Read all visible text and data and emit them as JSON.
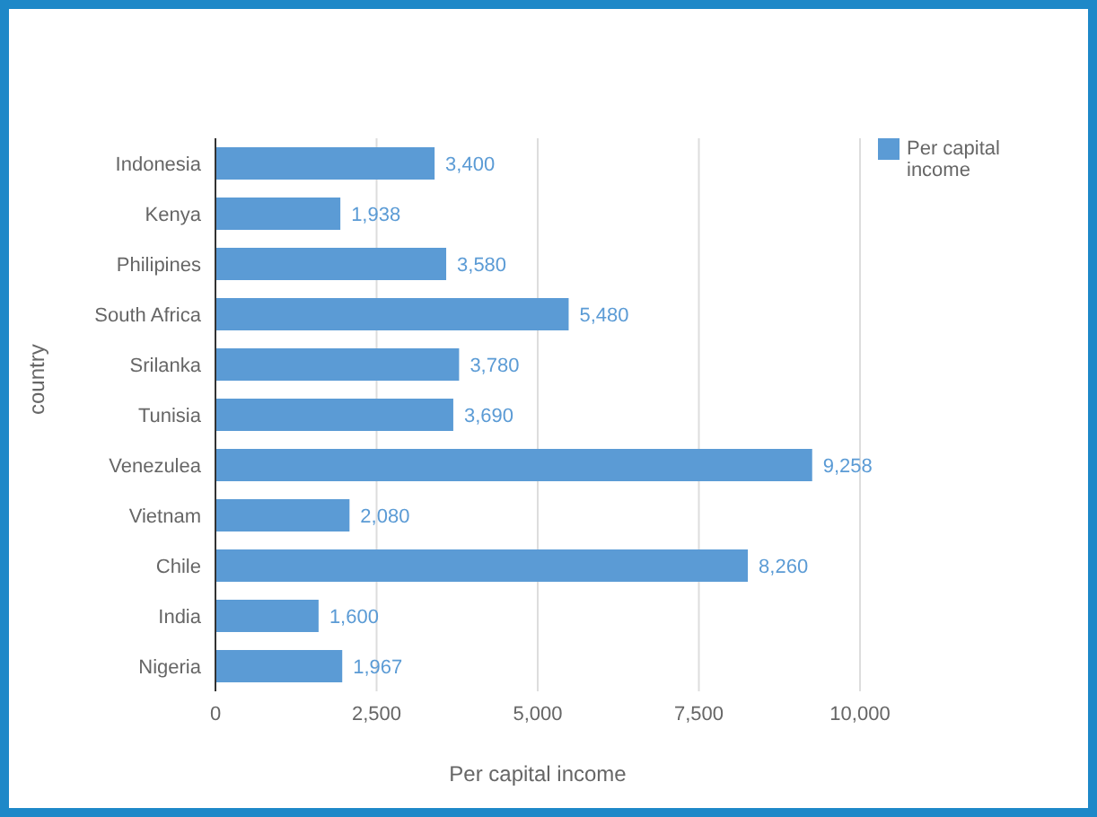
{
  "chart_data": {
    "type": "bar",
    "orientation": "horizontal",
    "xlabel": "Per capital income",
    "ylabel": "country",
    "categories": [
      "Indonesia",
      "Kenya",
      "Philipines",
      "South Africa",
      "Srilanka",
      "Tunisia",
      "Venezulea",
      "Vietnam",
      "Chile",
      "India",
      "Nigeria"
    ],
    "series": [
      {
        "name": "Per capital income",
        "color": "#5b9bd5",
        "values": [
          3400,
          1938,
          3580,
          5480,
          3780,
          3690,
          9258,
          2080,
          8260,
          1600,
          1967
        ],
        "value_labels": [
          "3,400",
          "1,938",
          "3,580",
          "5,480",
          "3,780",
          "3,690",
          "9,258",
          "2,080",
          "8,260",
          "1,600",
          "1,967"
        ]
      }
    ],
    "xlim": [
      0,
      10000
    ],
    "xticks": [
      0,
      {
        "value": 2500,
        "label": "2,500"
      },
      {
        "value": 5000,
        "label": "5,000"
      },
      {
        "value": 7500,
        "label": "7,500"
      },
      {
        "value": 10000,
        "label": "10,000"
      }
    ],
    "grid": "x",
    "legend": "top right"
  }
}
